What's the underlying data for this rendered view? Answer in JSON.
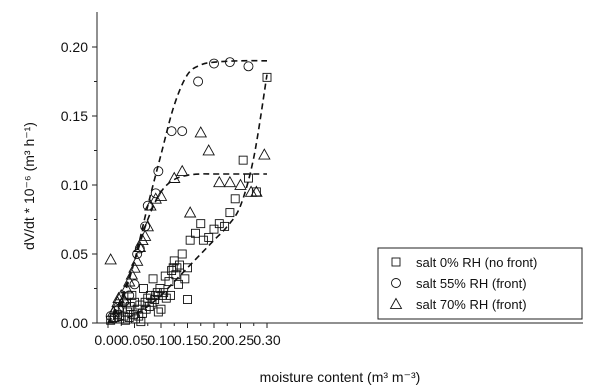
{
  "chart_data": {
    "type": "scatter",
    "xlabel": "moisture content (m³ m⁻³)",
    "ylabel": "dV/dt * 10⁻⁶ (m³ h⁻¹)",
    "xlim": [
      0,
      0.32
    ],
    "ylim": [
      0,
      0.22
    ],
    "x_ticks": [
      "0.00",
      "0.05",
      "0.10",
      "0.15",
      "0.20",
      "0.25",
      "0.30"
    ],
    "y_ticks": [
      "0.00",
      "0.05",
      "0.10",
      "0.15",
      "0.20"
    ],
    "grid": false,
    "legend_position": "bottom-right",
    "series": [
      {
        "name": "salt 0% RH (no front)",
        "marker": "square",
        "points": [
          [
            0.005,
            0.002
          ],
          [
            0.012,
            0.004
          ],
          [
            0.018,
            0.006
          ],
          [
            0.022,
            0.003
          ],
          [
            0.027,
            0.01
          ],
          [
            0.03,
            0.005
          ],
          [
            0.033,
            0.002
          ],
          [
            0.035,
            0.015
          ],
          [
            0.037,
            0.008
          ],
          [
            0.04,
            0.004
          ],
          [
            0.042,
            0.012
          ],
          [
            0.045,
            0.02
          ],
          [
            0.048,
            0.006
          ],
          [
            0.05,
            0.015
          ],
          [
            0.052,
            0.003
          ],
          [
            0.055,
            0.01
          ],
          [
            0.058,
            0.005
          ],
          [
            0.06,
            0.013
          ],
          [
            0.062,
            0.001
          ],
          [
            0.065,
            0.007
          ],
          [
            0.067,
            0.025
          ],
          [
            0.07,
            0.015
          ],
          [
            0.072,
            0.01
          ],
          [
            0.075,
            0.018
          ],
          [
            0.078,
            0.012
          ],
          [
            0.08,
            0.02
          ],
          [
            0.083,
            0.015
          ],
          [
            0.085,
            0.032
          ],
          [
            0.088,
            0.017
          ],
          [
            0.09,
            0.02
          ],
          [
            0.093,
            0.022
          ],
          [
            0.095,
            0.008
          ],
          [
            0.098,
            0.025
          ],
          [
            0.1,
            0.01
          ],
          [
            0.102,
            0.02
          ],
          [
            0.105,
            0.022
          ],
          [
            0.108,
            0.034
          ],
          [
            0.11,
            0.018
          ],
          [
            0.115,
            0.03
          ],
          [
            0.118,
            0.02
          ],
          [
            0.12,
            0.038
          ],
          [
            0.123,
            0.04
          ],
          [
            0.125,
            0.045
          ],
          [
            0.128,
            0.035
          ],
          [
            0.13,
            0.04
          ],
          [
            0.133,
            0.028
          ],
          [
            0.135,
            0.042
          ],
          [
            0.14,
            0.05
          ],
          [
            0.145,
            0.032
          ],
          [
            0.15,
            0.017
          ],
          [
            0.15,
            0.04
          ],
          [
            0.155,
            0.06
          ],
          [
            0.165,
            0.065
          ],
          [
            0.175,
            0.072
          ],
          [
            0.18,
            0.06
          ],
          [
            0.19,
            0.062
          ],
          [
            0.2,
            0.068
          ],
          [
            0.21,
            0.072
          ],
          [
            0.22,
            0.07
          ],
          [
            0.23,
            0.08
          ],
          [
            0.24,
            0.09
          ],
          [
            0.255,
            0.118
          ],
          [
            0.265,
            0.105
          ],
          [
            0.28,
            0.095
          ],
          [
            0.3,
            0.178
          ]
        ]
      },
      {
        "name": "salt 55% RH (front)",
        "marker": "circle",
        "points": [
          [
            0.005,
            0.005
          ],
          [
            0.01,
            0.003
          ],
          [
            0.02,
            0.01
          ],
          [
            0.03,
            0.015
          ],
          [
            0.04,
            0.02
          ],
          [
            0.05,
            0.028
          ],
          [
            0.055,
            0.05
          ],
          [
            0.06,
            0.054
          ],
          [
            0.07,
            0.07
          ],
          [
            0.075,
            0.085
          ],
          [
            0.09,
            0.094
          ],
          [
            0.095,
            0.11
          ],
          [
            0.12,
            0.139
          ],
          [
            0.14,
            0.139
          ],
          [
            0.17,
            0.175
          ],
          [
            0.2,
            0.188
          ],
          [
            0.23,
            0.189
          ],
          [
            0.265,
            0.186
          ]
        ]
      },
      {
        "name": "salt 70% RH (front)",
        "marker": "triangle",
        "points": [
          [
            0.005,
            0.046
          ],
          [
            0.01,
            0.008
          ],
          [
            0.015,
            0.011
          ],
          [
            0.018,
            0.015
          ],
          [
            0.02,
            0.018
          ],
          [
            0.025,
            0.02
          ],
          [
            0.03,
            0.017
          ],
          [
            0.035,
            0.025
          ],
          [
            0.04,
            0.03
          ],
          [
            0.045,
            0.035
          ],
          [
            0.05,
            0.04
          ],
          [
            0.055,
            0.045
          ],
          [
            0.06,
            0.055
          ],
          [
            0.065,
            0.06
          ],
          [
            0.07,
            0.063
          ],
          [
            0.075,
            0.07
          ],
          [
            0.08,
            0.085
          ],
          [
            0.09,
            0.09
          ],
          [
            0.1,
            0.092
          ],
          [
            0.125,
            0.105
          ],
          [
            0.14,
            0.11
          ],
          [
            0.155,
            0.08
          ],
          [
            0.175,
            0.138
          ],
          [
            0.19,
            0.125
          ],
          [
            0.21,
            0.102
          ],
          [
            0.23,
            0.102
          ],
          [
            0.25,
            0.1
          ],
          [
            0.27,
            0.095
          ],
          [
            0.28,
            0.095
          ],
          [
            0.295,
            0.122
          ]
        ]
      }
    ],
    "fit_curves": [
      {
        "series": "salt 55% RH (front)",
        "x": [
          0.0,
          0.025,
          0.05,
          0.075,
          0.1,
          0.125,
          0.15,
          0.175,
          0.2,
          0.25,
          0.3
        ],
        "y": [
          0.0,
          0.015,
          0.045,
          0.085,
          0.122,
          0.158,
          0.18,
          0.187,
          0.189,
          0.19,
          0.19
        ]
      },
      {
        "series": "salt 70% RH (front)",
        "x": [
          0.0,
          0.025,
          0.05,
          0.075,
          0.1,
          0.125,
          0.15,
          0.175,
          0.2,
          0.25,
          0.3
        ],
        "y": [
          0.0,
          0.018,
          0.045,
          0.075,
          0.095,
          0.104,
          0.107,
          0.108,
          0.108,
          0.108,
          0.108
        ]
      },
      {
        "series": "salt 0% RH (no front)",
        "x": [
          0.0,
          0.025,
          0.05,
          0.075,
          0.1,
          0.125,
          0.15,
          0.175,
          0.2,
          0.225,
          0.25,
          0.275,
          0.3
        ],
        "y": [
          0.0,
          0.002,
          0.006,
          0.012,
          0.02,
          0.03,
          0.04,
          0.05,
          0.06,
          0.07,
          0.085,
          0.12,
          0.18
        ]
      }
    ]
  }
}
